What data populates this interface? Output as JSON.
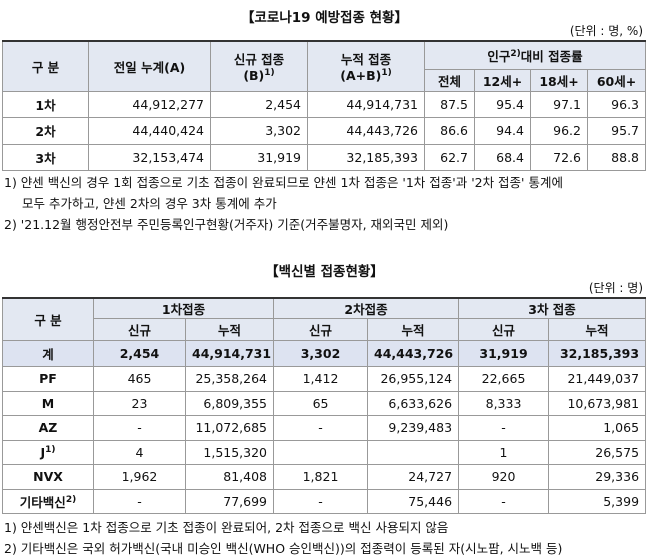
{
  "table1": {
    "title": "【코로나19 예방접종 현황】",
    "unit": "(단위 : 명, %)",
    "header": {
      "category": "구 분",
      "prev": "전일 누계(A)",
      "new": {
        "text": "신규 접종",
        "sub": "(B)",
        "sup": "1)"
      },
      "cum": {
        "text": "누적 접종",
        "sub": "(A+B)",
        "sup": "1)"
      },
      "rate": {
        "pre": "인구",
        "sup": "2)",
        "post": "대비 접종률"
      },
      "rate_cols": [
        "전체",
        "12세+",
        "18세+",
        "60세+"
      ]
    },
    "rows": [
      [
        "1차",
        "44,912,277",
        "2,454",
        "44,914,731",
        "87.5",
        "95.4",
        "97.1",
        "96.3"
      ],
      [
        "2차",
        "44,440,424",
        "3,302",
        "44,443,726",
        "86.6",
        "94.4",
        "96.2",
        "95.7"
      ],
      [
        "3차",
        "32,153,474",
        "31,919",
        "32,185,393",
        "62.7",
        "68.4",
        "72.6",
        "88.8"
      ]
    ]
  },
  "notes1": [
    "1) 얀센 백신의 경우 1회 접종으로 기초 접종이 완료되므로 얀센 1차 접종은 '1차 접종'과 '2차 접종' 통계에",
    "모두 추가하고, 얀센 2차의 경우 3차 통계에 추가",
    "2) '21.12월 행정안전부 주민등록인구현황(거주자) 기준(거주불명자, 재외국민 제외)"
  ],
  "table2": {
    "title": "【백신별 접종현황】",
    "unit": "(단위 : 명)",
    "header": {
      "category": "구 분",
      "groups": [
        "1차접종",
        "2차접종",
        "3차 접종"
      ],
      "subcols": [
        "신규",
        "누적",
        "신규",
        "누적",
        "신규",
        "누적"
      ]
    },
    "rows": [
      {
        "label": "계",
        "cells": [
          "2,454",
          "44,914,731",
          "3,302",
          "44,443,726",
          "31,919",
          "32,185,393"
        ]
      },
      {
        "label": "PF",
        "cells": [
          "465",
          "25,358,264",
          "1,412",
          "26,955,124",
          "22,665",
          "21,449,037"
        ]
      },
      {
        "label": "M",
        "cells": [
          "23",
          "6,809,355",
          "65",
          "6,633,626",
          "8,333",
          "10,673,981"
        ]
      },
      {
        "label": "AZ",
        "cells": [
          "-",
          "11,072,685",
          "-",
          "9,239,483",
          "-",
          "1,065"
        ]
      },
      {
        "label": "J",
        "sup": "1)",
        "cells": [
          "4",
          "1,515,320",
          null,
          null,
          "1",
          "26,575"
        ]
      },
      {
        "label": "NVX",
        "cells": [
          "1,962",
          "81,408",
          "1,821",
          "24,727",
          "920",
          "29,336"
        ]
      },
      {
        "label": "기타백신",
        "sup": "2)",
        "cells": [
          "-",
          "77,699",
          "-",
          "75,446",
          "-",
          "5,399"
        ]
      }
    ]
  },
  "notes2": [
    "1) 얀센백신은 1차 접종으로 기초 접종이 완료되어, 2차 접종으로 백신 사용되지 않음",
    "2) 기타백신은 국외 허가백신(국내 미승인 백신(WHO 승인백신))의 접종력이 등록된 자(시노팜, 시노백 등)"
  ]
}
